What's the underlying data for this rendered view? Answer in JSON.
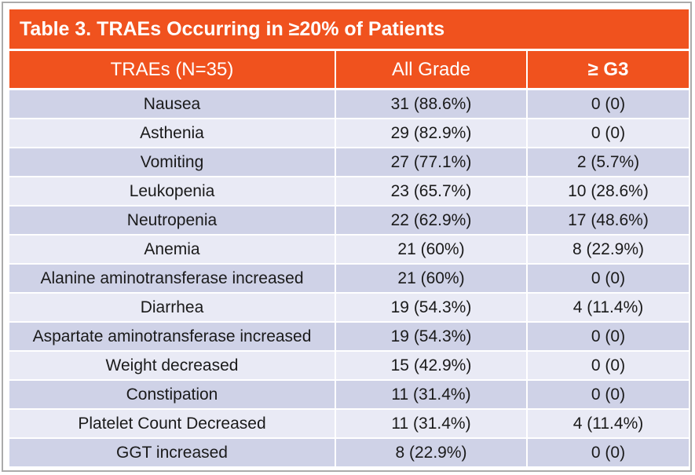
{
  "table": {
    "title": "Table 3. TRAEs Occurring in ≥20% of Patients",
    "columns": [
      "TRAEs (N=35)",
      "All Grade",
      "≥ G3"
    ]
  },
  "rows": [
    {
      "name": "Nausea",
      "all_grade": "31 (88.6%)",
      "g3": "0 (0)"
    },
    {
      "name": "Asthenia",
      "all_grade": "29 (82.9%)",
      "g3": "0 (0)"
    },
    {
      "name": "Vomiting",
      "all_grade": "27 (77.1%)",
      "g3": "2 (5.7%)"
    },
    {
      "name": "Leukopenia",
      "all_grade": "23 (65.7%)",
      "g3": "10 (28.6%)"
    },
    {
      "name": "Neutropenia",
      "all_grade": "22 (62.9%)",
      "g3": "17 (48.6%)"
    },
    {
      "name": "Anemia",
      "all_grade": "21 (60%)",
      "g3": "8 (22.9%)"
    },
    {
      "name": "Alanine aminotransferase increased",
      "all_grade": "21 (60%)",
      "g3": "0 (0)"
    },
    {
      "name": "Diarrhea",
      "all_grade": "19 (54.3%)",
      "g3": "4 (11.4%)"
    },
    {
      "name": "Aspartate aminotransferase increased",
      "all_grade": "19 (54.3%)",
      "g3": "0 (0)"
    },
    {
      "name": "Weight decreased",
      "all_grade": "15 (42.9%)",
      "g3": "0 (0)"
    },
    {
      "name": "Constipation",
      "all_grade": "11 (31.4%)",
      "g3": "0 (0)"
    },
    {
      "name": "Platelet Count Decreased",
      "all_grade": "11 (31.4%)",
      "g3": "4 (11.4%)"
    },
    {
      "name": "GGT increased",
      "all_grade": "8 (22.9%)",
      "g3": "0 (0)"
    }
  ],
  "colors": {
    "accent_orange": "#F0521E",
    "band_dark": "#CFD2E7",
    "band_light": "#E9EAF5",
    "header_text": "#FFFFFF",
    "body_text": "#1A1A1A",
    "separator": "#FFFFFF",
    "frame_border": "#ABABAB"
  },
  "chart_data": {
    "type": "table",
    "title": "Table 3. TRAEs Occurring in ≥20% of Patients",
    "columns": [
      "TRAEs (N=35)",
      "All Grade",
      "≥ G3"
    ],
    "rows": [
      [
        "Nausea",
        "31 (88.6%)",
        "0 (0)"
      ],
      [
        "Asthenia",
        "29 (82.9%)",
        "0 (0)"
      ],
      [
        "Vomiting",
        "27 (77.1%)",
        "2 (5.7%)"
      ],
      [
        "Leukopenia",
        "23 (65.7%)",
        "10 (28.6%)"
      ],
      [
        "Neutropenia",
        "22 (62.9%)",
        "17 (48.6%)"
      ],
      [
        "Anemia",
        "21 (60%)",
        "8 (22.9%)"
      ],
      [
        "Alanine aminotransferase increased",
        "21 (60%)",
        "0 (0)"
      ],
      [
        "Diarrhea",
        "19 (54.3%)",
        "4 (11.4%)"
      ],
      [
        "Aspartate aminotransferase increased",
        "19 (54.3%)",
        "0 (0)"
      ],
      [
        "Weight decreased",
        "15 (42.9%)",
        "0 (0)"
      ],
      [
        "Constipation",
        "11 (31.4%)",
        "0 (0)"
      ],
      [
        "Platelet Count Decreased",
        "11 (31.4%)",
        "4 (11.4%)"
      ],
      [
        "GGT increased",
        "8 (22.9%)",
        "0 (0)"
      ]
    ]
  }
}
